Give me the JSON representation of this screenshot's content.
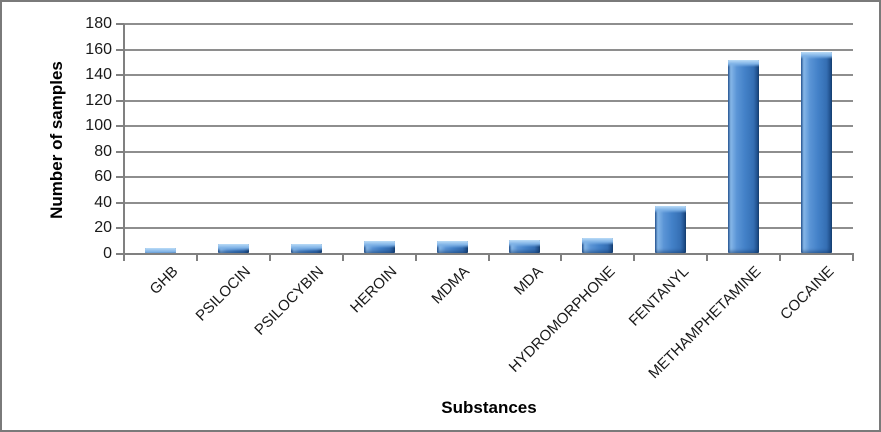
{
  "chart_data": {
    "type": "bar",
    "title": "",
    "xlabel": "Substances",
    "ylabel": "Number of samples",
    "categories": [
      "GHB",
      "PSILOCIN",
      "PSILOCYBIN",
      "HEROIN",
      "MDMA",
      "MDA",
      "HYDROMORPHONE",
      "FENTANYL",
      "METHAMPHETAMINE",
      "COCAINE"
    ],
    "values": [
      4,
      7,
      7,
      9,
      9,
      10,
      12,
      37,
      151,
      157
    ],
    "ylim": [
      0,
      180
    ],
    "ytick_step": 20,
    "yticks": [
      0,
      20,
      40,
      60,
      80,
      100,
      120,
      140,
      160,
      180
    ],
    "grid": true,
    "legend_position": "none",
    "colors": {
      "bar_main": "#4080C6",
      "bar_highlight": "#86B7E8",
      "bar_dark": "#1D4E89",
      "gridline": "#8E8E8E",
      "axis": "#808080",
      "text": "#1A1A1A",
      "frame_border": "#7A7A7A",
      "background": "#FFFFFF"
    }
  }
}
